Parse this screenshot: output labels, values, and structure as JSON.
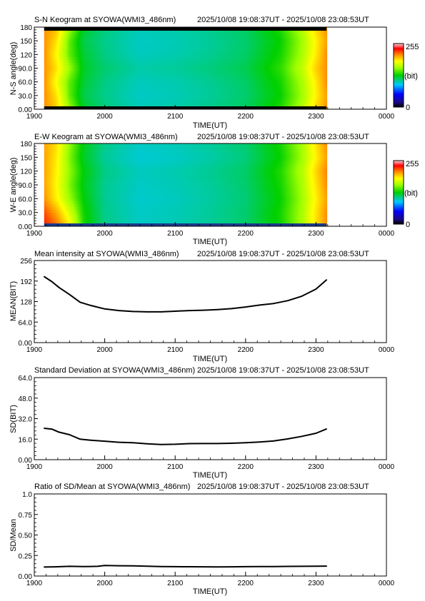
{
  "time_range": "2025/10/08 19:08:37UT - 2025/10/08 23:08:53UT",
  "x_axis": {
    "label": "TIME(UT)",
    "ticks": [
      "1900",
      "2000",
      "2100",
      "2200",
      "2300",
      "0000"
    ],
    "range_hours": [
      19.0,
      24.0
    ]
  },
  "panels": [
    {
      "id": "sn-keogram",
      "type": "heatmap",
      "title": "S-N Keogram at SYOWA(WMI3_486nm)",
      "ylabel": "N-S angle(deg)",
      "yticks": [
        "0.00",
        "30.0",
        "60.0",
        "90.0",
        "120",
        "150",
        "180"
      ],
      "ylim": [
        0,
        180
      ],
      "colorbar": {
        "max": "255",
        "unit": "(bit)",
        "min": "0"
      },
      "data_extent_hours": [
        19.14,
        23.15
      ]
    },
    {
      "id": "ew-keogram",
      "type": "heatmap",
      "title": "E-W Keogram at SYOWA(WMI3_486nm)",
      "ylabel": "W-E angle(deg)",
      "yticks": [
        "0.00",
        "30.0",
        "60.0",
        "90.0",
        "120",
        "150",
        "180"
      ],
      "ylim": [
        0,
        180
      ],
      "colorbar": {
        "max": "255",
        "unit": "(bit)",
        "min": "0"
      },
      "data_extent_hours": [
        19.14,
        23.15
      ]
    },
    {
      "id": "mean-intensity",
      "type": "line",
      "title": "Mean intensity at SYOWA(WMI3_486nm)",
      "ylabel": "MEAN(BIT)",
      "yticks": [
        "0.00",
        "64.0",
        "128",
        "192",
        "256"
      ],
      "ylim": [
        0,
        256
      ]
    },
    {
      "id": "std-dev",
      "type": "line",
      "title": "Standard Deviation at SYOWA(WMI3_486nm)",
      "ylabel": "SD(BIT)",
      "yticks": [
        "0.00",
        "16.0",
        "32.0",
        "48.0",
        "64.0"
      ],
      "ylim": [
        0,
        64
      ]
    },
    {
      "id": "ratio",
      "type": "line",
      "title": "Ratio of SD/Mean at SYOWA(WMI3_486nm)",
      "ylabel": "SD/Mean",
      "yticks": [
        "0.00",
        "0.25",
        "0.50",
        "0.75",
        "1.0"
      ],
      "ylim": [
        0,
        1
      ]
    }
  ],
  "chart_data": [
    {
      "type": "heatmap",
      "title": "S-N Keogram at SYOWA(WMI3_486nm)",
      "ylabel": "N-S angle(deg)",
      "xlabel": "TIME(UT)",
      "ylim": [
        0,
        180
      ],
      "color_range": [
        0,
        255
      ],
      "time_hours": [
        19.14,
        19.3,
        19.5,
        19.7,
        20.0,
        20.5,
        21.0,
        21.5,
        22.0,
        22.5,
        22.8,
        23.0,
        23.15
      ],
      "angles_deg": [
        0,
        30,
        60,
        90,
        120,
        150,
        180
      ],
      "values": [
        [
          205,
          205,
          205,
          205,
          205,
          205,
          205
        ],
        [
          190,
          185,
          175,
          185,
          178,
          185,
          195
        ],
        [
          150,
          140,
          140,
          150,
          140,
          140,
          150
        ],
        [
          120,
          115,
          118,
          120,
          118,
          115,
          120
        ],
        [
          108,
          106,
          107,
          110,
          107,
          106,
          108
        ],
        [
          100,
          98,
          99,
          102,
          99,
          98,
          100
        ],
        [
          102,
          100,
          101,
          104,
          101,
          100,
          102
        ],
        [
          106,
          104,
          105,
          108,
          105,
          104,
          106
        ],
        [
          112,
          110,
          111,
          114,
          111,
          110,
          112
        ],
        [
          130,
          126,
          128,
          132,
          128,
          126,
          130
        ],
        [
          155,
          150,
          152,
          158,
          152,
          150,
          155
        ],
        [
          185,
          178,
          180,
          188,
          180,
          178,
          185
        ],
        [
          205,
          200,
          205,
          205,
          205,
          200,
          205
        ]
      ]
    },
    {
      "type": "heatmap",
      "title": "E-W Keogram at SYOWA(WMI3_486nm)",
      "ylabel": "W-E angle(deg)",
      "xlabel": "TIME(UT)",
      "ylim": [
        0,
        180
      ],
      "color_range": [
        0,
        255
      ],
      "time_hours": [
        19.14,
        19.3,
        19.5,
        19.7,
        20.0,
        20.5,
        21.0,
        21.5,
        22.0,
        22.5,
        22.8,
        23.0,
        23.15
      ],
      "angles_deg": [
        0,
        30,
        60,
        90,
        120,
        150,
        180
      ],
      "values": [
        [
          230,
          220,
          205,
          200,
          200,
          200,
          200
        ],
        [
          215,
          200,
          180,
          178,
          180,
          182,
          185
        ],
        [
          180,
          165,
          150,
          145,
          148,
          145,
          148
        ],
        [
          130,
          128,
          124,
          122,
          124,
          120,
          122
        ],
        [
          106,
          106,
          105,
          105,
          107,
          104,
          106
        ],
        [
          98,
          98,
          97,
          98,
          99,
          96,
          98
        ],
        [
          100,
          100,
          99,
          100,
          101,
          98,
          100
        ],
        [
          104,
          104,
          103,
          104,
          105,
          102,
          104
        ],
        [
          110,
          110,
          109,
          110,
          111,
          108,
          110
        ],
        [
          128,
          128,
          126,
          128,
          130,
          126,
          128
        ],
        [
          152,
          152,
          150,
          152,
          155,
          150,
          152
        ],
        [
          182,
          182,
          178,
          182,
          186,
          178,
          182
        ],
        [
          205,
          205,
          200,
          205,
          208,
          200,
          205
        ]
      ]
    },
    {
      "type": "line",
      "title": "Mean intensity at SYOWA(WMI3_486nm)",
      "xlabel": "TIME(UT)",
      "ylabel": "MEAN(BIT)",
      "ylim": [
        0,
        256
      ],
      "x": [
        19.14,
        19.25,
        19.35,
        19.5,
        19.65,
        19.8,
        20.0,
        20.2,
        20.4,
        20.6,
        20.8,
        21.0,
        21.2,
        21.4,
        21.6,
        21.8,
        22.0,
        22.2,
        22.4,
        22.6,
        22.8,
        23.0,
        23.15
      ],
      "values": [
        206,
        190,
        172,
        150,
        126,
        116,
        105,
        100,
        97,
        96,
        96,
        98,
        100,
        101,
        103,
        106,
        111,
        117,
        122,
        131,
        145,
        167,
        196
      ]
    },
    {
      "type": "line",
      "title": "Standard Deviation at SYOWA(WMI3_486nm)",
      "xlabel": "TIME(UT)",
      "ylabel": "SD(BIT)",
      "ylim": [
        0,
        64
      ],
      "x": [
        19.14,
        19.25,
        19.35,
        19.5,
        19.65,
        19.8,
        20.0,
        20.2,
        20.4,
        20.6,
        20.8,
        21.0,
        21.2,
        21.4,
        21.6,
        21.8,
        22.0,
        22.2,
        22.4,
        22.6,
        22.8,
        23.0,
        23.15
      ],
      "values": [
        24.5,
        23.8,
        21.5,
        19.5,
        16.0,
        15.2,
        14.4,
        13.6,
        13.2,
        12.4,
        11.8,
        12.0,
        12.5,
        12.6,
        12.6,
        12.8,
        13.2,
        13.8,
        14.6,
        16.2,
        18.2,
        20.6,
        24.0
      ]
    },
    {
      "type": "line",
      "title": "Ratio of SD/Mean at SYOWA(WMI3_486nm)",
      "xlabel": "TIME(UT)",
      "ylabel": "SD/Mean",
      "ylim": [
        0,
        1
      ],
      "x": [
        19.14,
        19.3,
        19.5,
        19.7,
        19.9,
        20.0,
        20.2,
        20.4,
        20.6,
        20.8,
        21.0,
        21.2,
        21.4,
        21.6,
        21.8,
        22.0,
        22.2,
        22.4,
        22.6,
        22.8,
        23.0,
        23.15
      ],
      "values": [
        0.11,
        0.112,
        0.118,
        0.115,
        0.118,
        0.128,
        0.125,
        0.124,
        0.12,
        0.116,
        0.114,
        0.113,
        0.112,
        0.111,
        0.112,
        0.114,
        0.115,
        0.116,
        0.117,
        0.118,
        0.119,
        0.121
      ]
    }
  ]
}
